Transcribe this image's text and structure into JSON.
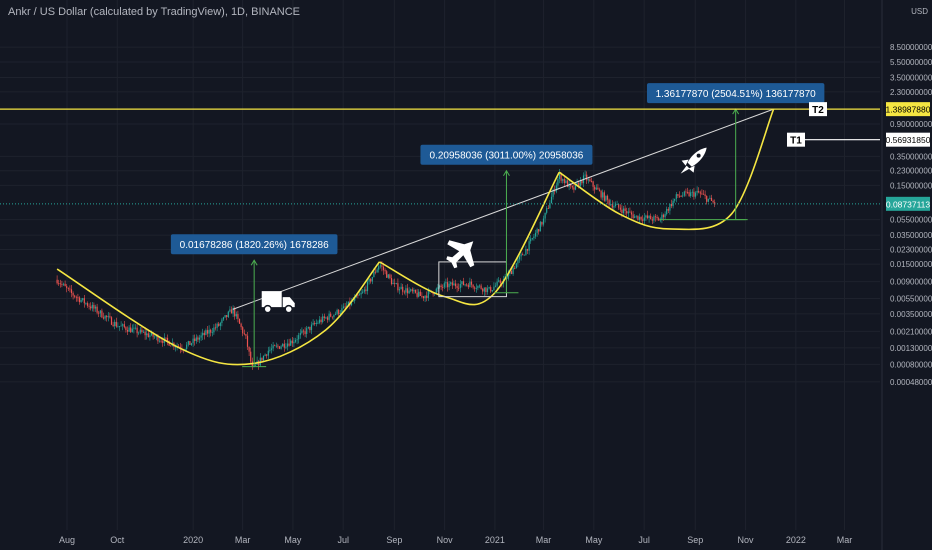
{
  "header": {
    "title": "Ankr / US Dollar (calculated by TradingView), 1D, BINANCE",
    "currency": "USD"
  },
  "colors": {
    "background": "#131722",
    "grid": "#1e222d",
    "candle_up": "#26a69a",
    "candle_down": "#ef5350",
    "yellow": "#f5e642",
    "trendline": "#d9d9d9",
    "measure": "#4caf50",
    "label_blue": "#1e5a96",
    "current_price": "#26a69a"
  },
  "chart_data": {
    "type": "candlestick",
    "y_scale": "log",
    "x_labels": [
      "Aug",
      "Oct",
      "2020",
      "Mar",
      "May",
      "Jul",
      "Sep",
      "Nov",
      "2021",
      "Mar",
      "May",
      "Jul",
      "Sep",
      "Nov",
      "2022",
      "Mar"
    ],
    "y_ticks": [
      8.5,
      5.5,
      3.5,
      2.3,
      0.9,
      0.35,
      0.23,
      0.15,
      0.055,
      0.035,
      0.023,
      0.015,
      0.009,
      0.0055,
      0.0035,
      0.0021,
      0.0013,
      0.0008,
      0.00048
    ],
    "y_tick_labels": [
      "8.50000000",
      "5.50000000",
      "3.50000000",
      "2.30000000",
      "0.90000000",
      "0.35000000",
      "0.23000000",
      "0.15000000",
      "0.05500000",
      "0.03500000",
      "0.02300000",
      "0.01500000",
      "0.00900000",
      "0.00550000",
      "0.00350000",
      "0.00210000",
      "0.00130000",
      "0.00080000",
      "0.00048000"
    ],
    "price_labels": [
      {
        "value": 1.3898788,
        "text": "1.38987880",
        "style": "yellow"
      },
      {
        "value": 0.5693185,
        "text": "0.56931850",
        "style": "white"
      },
      {
        "value": 0.08737113,
        "text": "0.08737113",
        "style": "current"
      }
    ],
    "targets": [
      {
        "name": "T2",
        "value": 1.3898788
      },
      {
        "name": "T1",
        "value": 0.5693185
      }
    ],
    "price_path": [
      [
        "2019-07-20",
        0.0095
      ],
      [
        "2019-08-05",
        0.0065
      ],
      [
        "2019-09-01",
        0.0042
      ],
      [
        "2019-10-01",
        0.0025
      ],
      [
        "2019-11-15",
        0.0018
      ],
      [
        "2019-12-20",
        0.0013
      ],
      [
        "2020-02-01",
        0.0025
      ],
      [
        "2020-02-18",
        0.004
      ],
      [
        "2020-03-05",
        0.0017
      ],
      [
        "2020-03-13",
        0.00068
      ],
      [
        "2020-04-01",
        0.0012
      ],
      [
        "2020-05-01",
        0.0016
      ],
      [
        "2020-06-01",
        0.0028
      ],
      [
        "2020-07-01",
        0.004
      ],
      [
        "2020-07-25",
        0.0065
      ],
      [
        "2020-08-14",
        0.015
      ],
      [
        "2020-09-01",
        0.008
      ],
      [
        "2020-10-05",
        0.0058
      ],
      [
        "2020-11-01",
        0.008
      ],
      [
        "2020-12-01",
        0.0085
      ],
      [
        "2020-12-25",
        0.007
      ],
      [
        "2021-01-15",
        0.01
      ],
      [
        "2021-02-10",
        0.025
      ],
      [
        "2021-03-01",
        0.055
      ],
      [
        "2021-03-20",
        0.2
      ],
      [
        "2021-04-05",
        0.13
      ],
      [
        "2021-04-20",
        0.19
      ],
      [
        "2021-05-20",
        0.09
      ],
      [
        "2021-06-20",
        0.06
      ],
      [
        "2021-07-20",
        0.055
      ],
      [
        "2021-08-10",
        0.11
      ],
      [
        "2021-09-05",
        0.12
      ],
      [
        "2021-09-25",
        0.087
      ]
    ],
    "measurements": [
      {
        "label": "0.01678286 (1820.26%) 1678286",
        "from": [
          "2020-03-15",
          0.00075
        ],
        "to": [
          "2020-03-15",
          0.0168
        ]
      },
      {
        "label": "0.20958036 (3011.00%) 20958036",
        "from": [
          "2021-01-15",
          0.0065
        ],
        "to": [
          "2021-01-15",
          0.23
        ]
      },
      {
        "label": "1.36177870 (2504.51%) 136177870",
        "from": [
          "2021-10-20",
          0.055
        ],
        "to": [
          "2021-10-20",
          1.39
        ]
      }
    ],
    "trendline": [
      [
        "2020-02-18",
        0.004
      ],
      [
        "2021-12-05",
        1.39
      ]
    ],
    "cup_curves": [
      {
        "points": [
          [
            "2019-07-20",
            0.013
          ],
          [
            "2019-12-15",
            0.0013
          ],
          [
            "2020-03-13",
            0.00082
          ],
          [
            "2020-06-10",
            0.0022
          ],
          [
            "2020-08-14",
            0.016
          ]
        ]
      },
      {
        "points": [
          [
            "2020-08-14",
            0.016
          ],
          [
            "2020-11-01",
            0.0058
          ],
          [
            "2021-01-01",
            0.0065
          ],
          [
            "2021-03-20",
            0.22
          ]
        ]
      },
      {
        "points": [
          [
            "2021-03-20",
            0.22
          ],
          [
            "2021-06-01",
            0.065
          ],
          [
            "2021-08-01",
            0.042
          ],
          [
            "2021-10-15",
            0.065
          ],
          [
            "2021-12-05",
            1.39
          ]
        ]
      }
    ],
    "consolidation_box": {
      "from": [
        "2020-10-25",
        0.0058
      ],
      "to": [
        "2021-01-15",
        0.016
      ]
    },
    "support_line": {
      "from": [
        "2021-07-20",
        0.055
      ],
      "to": [
        "2021-11-01",
        0.055
      ]
    },
    "icons": [
      {
        "name": "truck-icon",
        "at": [
          "2020-04-15",
          0.0048
        ]
      },
      {
        "name": "airplane-icon",
        "at": [
          "2020-11-20",
          0.02
        ]
      },
      {
        "name": "rocket-icon",
        "at": [
          "2021-08-30",
          0.3
        ]
      }
    ]
  }
}
